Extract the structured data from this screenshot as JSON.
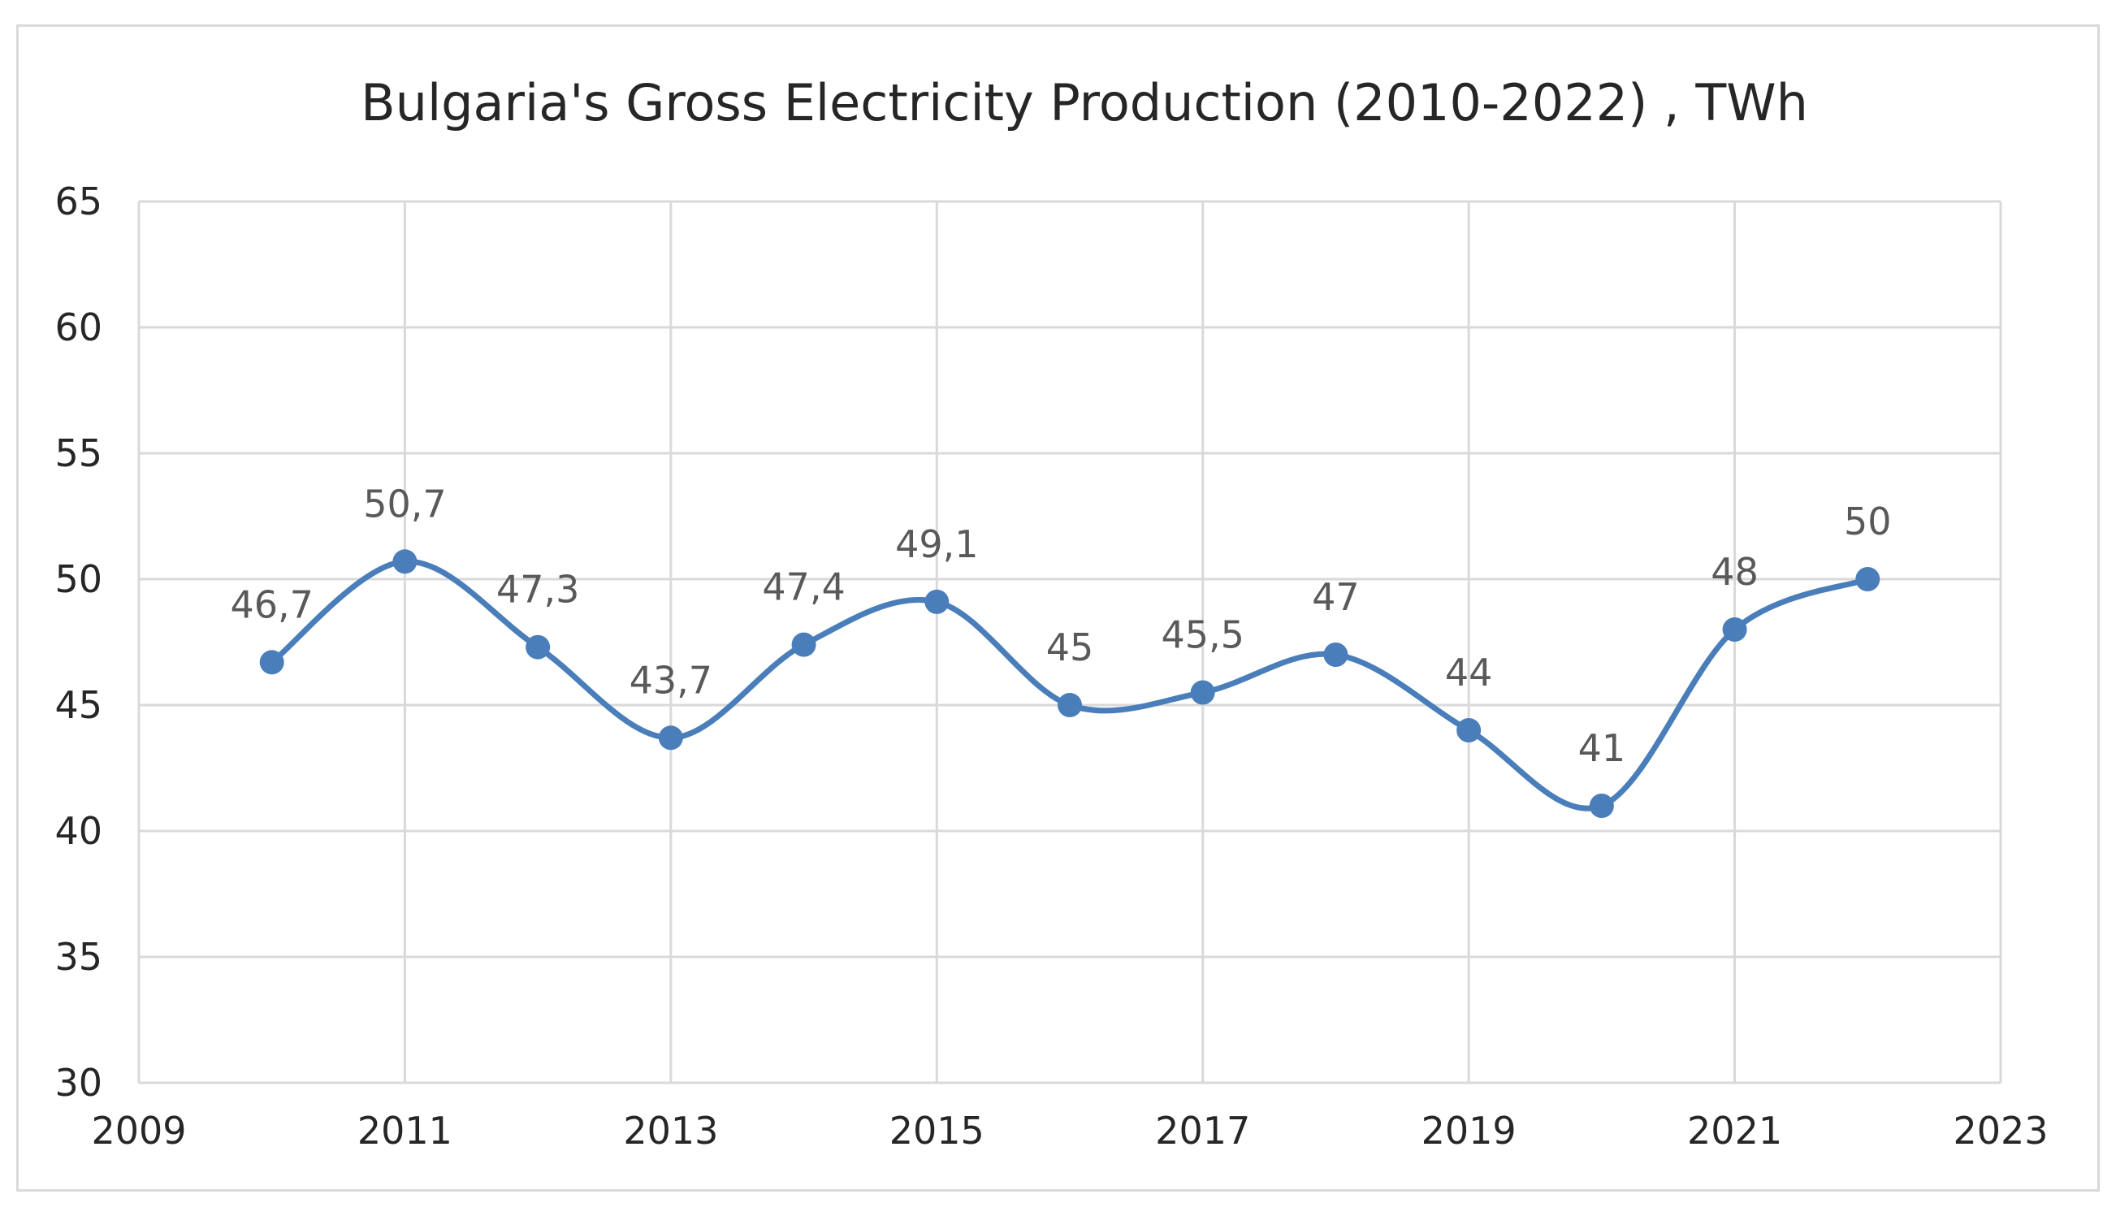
{
  "chart_data": {
    "type": "scatter",
    "title": "Bulgaria's Gross Electricity Production (2010-2022) , TWh",
    "xlabel": "",
    "ylabel": "",
    "xlim": [
      2009,
      2023
    ],
    "ylim": [
      30,
      65
    ],
    "x_ticks": [
      "2009",
      "2011",
      "2013",
      "2015",
      "2017",
      "2019",
      "2021",
      "2023"
    ],
    "x_tick_values": [
      2009,
      2011,
      2013,
      2015,
      2017,
      2019,
      2021,
      2023
    ],
    "y_ticks": [
      "30",
      "35",
      "40",
      "45",
      "50",
      "55",
      "60",
      "65"
    ],
    "y_tick_values": [
      30,
      35,
      40,
      45,
      50,
      55,
      60,
      65
    ],
    "grid": true,
    "legend": "none",
    "line_style": "smooth",
    "series": [
      {
        "name": "Gross Electricity Production",
        "color": "#4a7ebb",
        "x": [
          2010,
          2011,
          2012,
          2013,
          2014,
          2015,
          2016,
          2017,
          2018,
          2019,
          2020,
          2021,
          2022
        ],
        "values": [
          46.7,
          50.7,
          47.3,
          43.7,
          47.4,
          49.1,
          45,
          45.5,
          47,
          44,
          41,
          48,
          50
        ],
        "labels": [
          "46,7",
          "50,7",
          "47,3",
          "43,7",
          "47,4",
          "49,1",
          "45",
          "45,5",
          "47",
          "44",
          "41",
          "48",
          "50"
        ]
      }
    ]
  }
}
